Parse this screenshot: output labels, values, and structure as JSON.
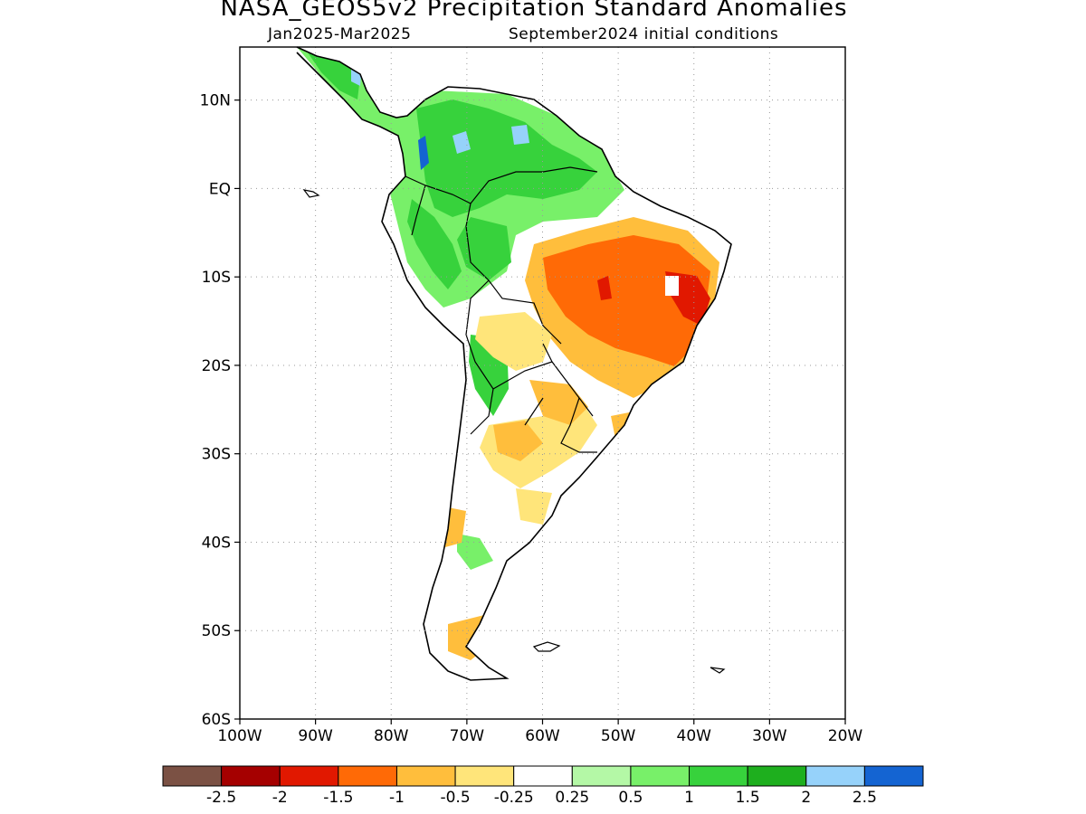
{
  "header": {
    "title": "NASA_GEOS5v2 Precipitation Standard Anomalies",
    "period": "Jan2025-Mar2025",
    "init": "September2024 initial conditions"
  },
  "map": {
    "lon_range": [
      -100,
      -20
    ],
    "lat_range": [
      -60,
      16
    ],
    "lat_ticks": [
      {
        "value": 10,
        "label": "10N"
      },
      {
        "value": 0,
        "label": "EQ"
      },
      {
        "value": -10,
        "label": "10S"
      },
      {
        "value": -20,
        "label": "20S"
      },
      {
        "value": -30,
        "label": "30S"
      },
      {
        "value": -40,
        "label": "40S"
      },
      {
        "value": -50,
        "label": "50S"
      },
      {
        "value": -60,
        "label": "60S"
      }
    ],
    "lon_ticks": [
      {
        "value": -100,
        "label": "100W"
      },
      {
        "value": -90,
        "label": "90W"
      },
      {
        "value": -80,
        "label": "80W"
      },
      {
        "value": -70,
        "label": "70W"
      },
      {
        "value": -60,
        "label": "60W"
      },
      {
        "value": -50,
        "label": "50W"
      },
      {
        "value": -40,
        "label": "40W"
      },
      {
        "value": -30,
        "label": "30W"
      },
      {
        "value": -20,
        "label": "20W"
      }
    ],
    "grid": "dotted",
    "coastline_color": "#000000"
  },
  "colorbar": {
    "colors": [
      "#7b5144",
      "#a50000",
      "#e11800",
      "#ff6a06",
      "#ffbe3c",
      "#ffe57a",
      "#ffffff",
      "#b4f8a6",
      "#78f069",
      "#37d23c",
      "#1eaf1e",
      "#96d2fa",
      "#1464d2"
    ],
    "labels": [
      "-2.5",
      "-2",
      "-1.5",
      "-1",
      "-0.5",
      "-0.25",
      "0.25",
      "0.5",
      "1",
      "1.5",
      "2",
      "2.5"
    ]
  }
}
